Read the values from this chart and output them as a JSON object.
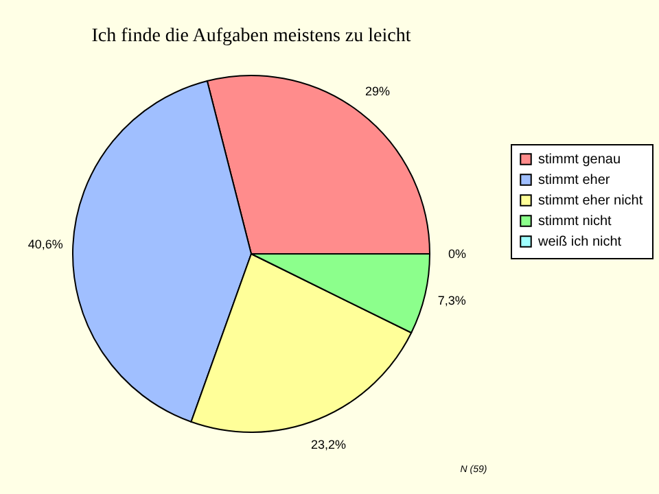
{
  "chart_data": {
    "type": "pie",
    "title": "Ich finde die Aufgaben meistens zu leicht",
    "categories": [
      "stimmt genau",
      "stimmt eher",
      "stimmt eher nicht",
      "stimmt nicht",
      "weiß ich nicht"
    ],
    "values": [
      29,
      40.6,
      23.2,
      7.3,
      0
    ],
    "value_labels": [
      "29%",
      "40,6%",
      "23,2%",
      "7,3%",
      "0%"
    ],
    "colors": [
      "#ff8c8c",
      "#a0bfff",
      "#ffff99",
      "#8cff8c",
      "#a0ffff"
    ],
    "legend": "right",
    "annotations": [
      "N (59)"
    ]
  }
}
